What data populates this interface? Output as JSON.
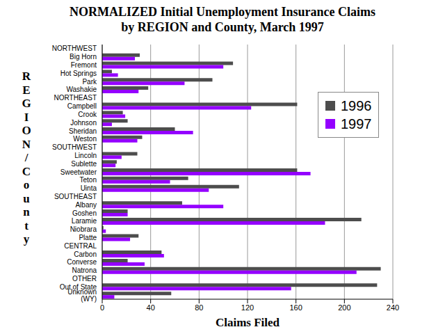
{
  "chart_data": {
    "type": "bar",
    "orientation": "horizontal",
    "title": "NORMALIZED Initial Unemployment Insurance Claims",
    "subtitle": "by REGION and County, March 1997",
    "x_label": "Claims Filed",
    "y_label": "REGION/County",
    "categories": [
      "NORTHWEST",
      "Big Horn",
      "Fremont",
      "Hot Springs",
      "Park",
      "Washakie",
      "NORTHEAST",
      "Campbell",
      "Crook",
      "Johnson",
      "Sheridan",
      "Weston",
      "SOUTHWEST",
      "Lincoln",
      "Sublette",
      "Sweetwater",
      "Teton",
      "Uinta",
      "SOUTHEAST",
      "Albany",
      "Goshen",
      "Laramie",
      "Niobrara",
      "Platte",
      "CENTRAL",
      "Carbon",
      "Converse",
      "Natrona",
      "OTHER",
      "Out of State",
      "Unknown (WY)"
    ],
    "series": [
      {
        "name": "1996",
        "color": "#4d4d4d",
        "values": [
          null,
          31,
          108,
          8,
          91,
          38,
          null,
          161,
          17,
          21,
          60,
          33,
          null,
          29,
          12,
          161,
          71,
          113,
          null,
          66,
          21,
          214,
          1,
          30,
          null,
          49,
          21,
          230,
          null,
          227,
          57
        ]
      },
      {
        "name": "1997",
        "color": "#9400ff",
        "values": [
          null,
          27,
          100,
          13,
          68,
          30,
          null,
          123,
          19,
          8,
          75,
          29,
          null,
          16,
          11,
          172,
          56,
          88,
          null,
          100,
          21,
          184,
          3,
          23,
          null,
          51,
          35,
          210,
          null,
          156,
          10
        ]
      }
    ],
    "xlim": [
      0,
      240
    ],
    "xticks": [
      0,
      40,
      80,
      120,
      160,
      200,
      240
    ],
    "grid": true,
    "legend": "upper right"
  }
}
